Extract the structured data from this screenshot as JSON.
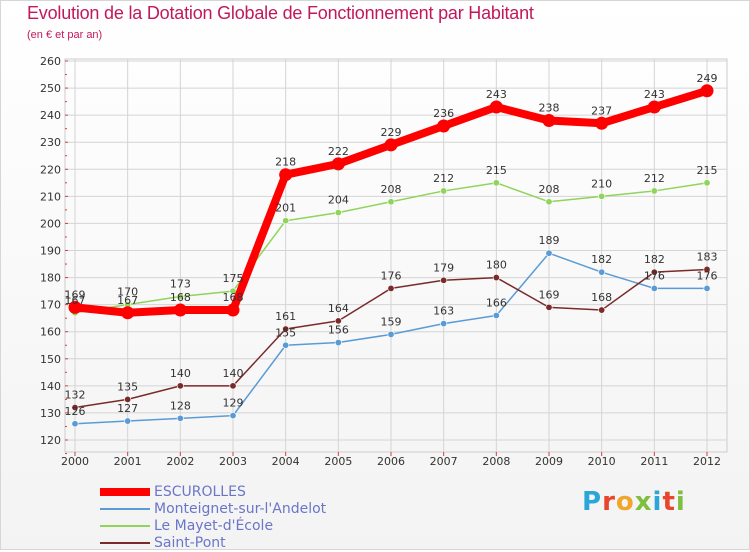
{
  "header": {
    "title": "Evolution de la Dotation Globale de Fonctionnement par Habitant",
    "subtitle": "(en € et par an)"
  },
  "brand": {
    "text": "Proxiti",
    "letter_colors": [
      "#2aa6d9",
      "#e8452c",
      "#f2a52b",
      "#7fbf3f",
      "#2aa6d9",
      "#e8452c",
      "#7fbf3f"
    ]
  },
  "chart_data": {
    "type": "line",
    "title": "Evolution de la Dotation Globale de Fonctionnement par Habitant",
    "subtitle": "(en € et par an)",
    "xlabel": "",
    "ylabel": "",
    "x": [
      "2000",
      "2001",
      "2002",
      "2003",
      "2004",
      "2005",
      "2006",
      "2007",
      "2008",
      "2009",
      "2010",
      "2011",
      "2012"
    ],
    "ylim": [
      120,
      260
    ],
    "yticks": [
      120,
      130,
      140,
      150,
      160,
      170,
      180,
      190,
      200,
      210,
      220,
      230,
      240,
      250,
      260
    ],
    "grid": true,
    "legend_position": "bottom-left",
    "series": [
      {
        "name": "ESCUROLLES",
        "color": "#ff0000",
        "values": [
          169,
          167,
          168,
          168,
          218,
          222,
          229,
          236,
          243,
          238,
          237,
          243,
          249
        ]
      },
      {
        "name": "Monteignet-sur-l'Andelot",
        "color": "#5b9bd5",
        "values": [
          126,
          127,
          128,
          129,
          155,
          156,
          159,
          163,
          166,
          189,
          182,
          176,
          176
        ]
      },
      {
        "name": "Le Mayet-d'École",
        "color": "#8fd45b",
        "values": [
          167,
          170,
          173,
          175,
          201,
          204,
          208,
          212,
          215,
          208,
          210,
          212,
          215
        ]
      },
      {
        "name": "Saint-Pont",
        "color": "#7b2a2a",
        "values": [
          132,
          135,
          140,
          140,
          161,
          164,
          176,
          179,
          180,
          169,
          168,
          182,
          183
        ]
      }
    ],
    "data_labels": {
      "ESCUROLLES": [
        "169",
        "167",
        "168",
        "168",
        "218",
        "222",
        "229",
        "236",
        "243",
        "238",
        "237",
        "243",
        "249"
      ],
      "Monteignet-sur-l'Andelot": [
        "126",
        "127",
        "128",
        "129",
        "155",
        "156",
        "159",
        "163",
        "166",
        "189",
        "182",
        "176",
        "176"
      ],
      "Le Mayet-d'École": [
        "167",
        "170",
        "173",
        "175",
        "201",
        "204",
        "208",
        "212",
        "215",
        "208",
        "210",
        "212",
        "215"
      ],
      "Saint-Pont": [
        "132",
        "135",
        "140",
        "140",
        "161",
        "164",
        "176",
        "179",
        "180",
        "169",
        "168",
        "182",
        "183"
      ]
    }
  }
}
